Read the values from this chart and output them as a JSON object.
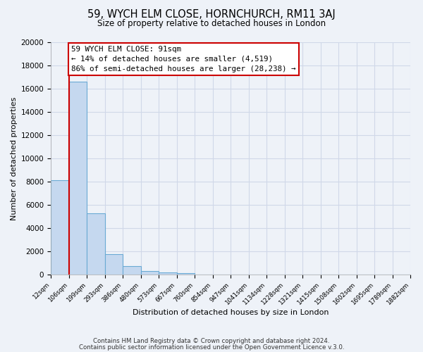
{
  "title": "59, WYCH ELM CLOSE, HORNCHURCH, RM11 3AJ",
  "subtitle": "Size of property relative to detached houses in London",
  "bar_heights": [
    8100,
    16600,
    5300,
    1750,
    700,
    300,
    175,
    100,
    0,
    0,
    0,
    0,
    0,
    0,
    0,
    0,
    0,
    0,
    0,
    0
  ],
  "bin_labels": [
    "12sqm",
    "106sqm",
    "199sqm",
    "293sqm",
    "386sqm",
    "480sqm",
    "573sqm",
    "667sqm",
    "760sqm",
    "854sqm",
    "947sqm",
    "1041sqm",
    "1134sqm",
    "1228sqm",
    "1321sqm",
    "1415sqm",
    "1508sqm",
    "1602sqm",
    "1695sqm",
    "1789sqm",
    "1882sqm"
  ],
  "bar_color": "#c5d8ef",
  "bar_edgecolor": "#6aaad4",
  "vline_x": 1.0,
  "vline_color": "#cc0000",
  "annotation_line1": "59 WYCH ELM CLOSE: 91sqm",
  "annotation_line2": "← 14% of detached houses are smaller (4,519)",
  "annotation_line3": "86% of semi-detached houses are larger (28,238) →",
  "annotation_box_edgecolor": "#cc0000",
  "xlabel": "Distribution of detached houses by size in London",
  "ylabel": "Number of detached properties",
  "ylim": [
    0,
    20000
  ],
  "yticks": [
    0,
    2000,
    4000,
    6000,
    8000,
    10000,
    12000,
    14000,
    16000,
    18000,
    20000
  ],
  "footer_line1": "Contains HM Land Registry data © Crown copyright and database right 2024.",
  "footer_line2": "Contains public sector information licensed under the Open Government Licence v.3.0.",
  "bg_color": "#eef2f8",
  "grid_color": "#d0d8e8",
  "n_bins": 20
}
